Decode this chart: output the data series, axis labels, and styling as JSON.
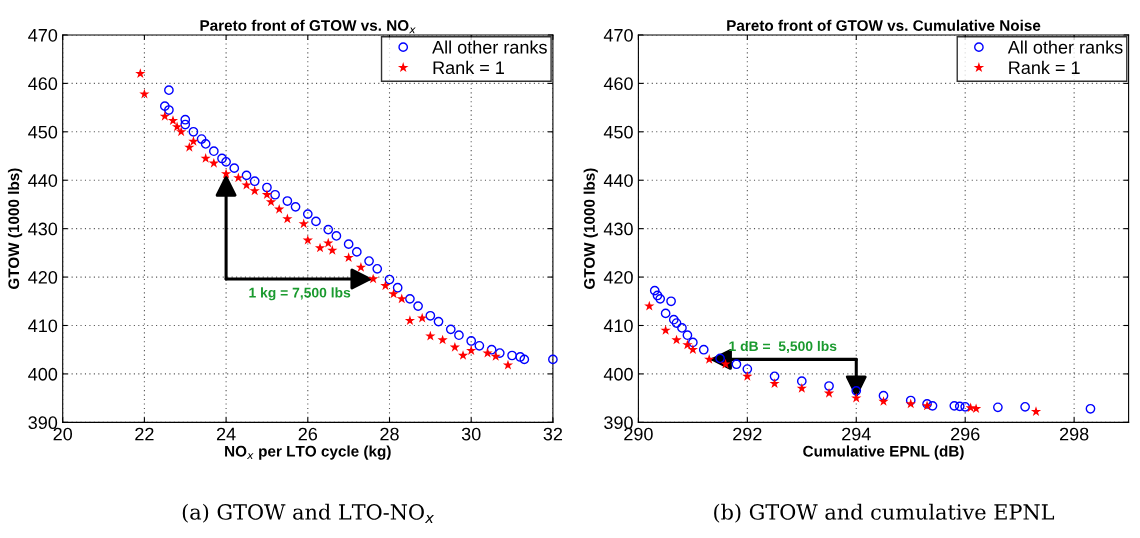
{
  "chart_data": [
    {
      "type": "scatter",
      "title": "Pareto front of GTOW vs. NO$_{x}$",
      "xlabel": "NO$_{x}$ per LTO cycle (kg)",
      "ylabel": "GTOW (1000 lbs)",
      "xlim": [
        20,
        32
      ],
      "xticks": [
        20,
        22,
        24,
        26,
        28,
        30,
        32
      ],
      "ylim": [
        390,
        470
      ],
      "yticks": [
        390,
        400,
        410,
        420,
        430,
        440,
        450,
        460,
        470
      ],
      "grid": true,
      "legend": "top right",
      "annotations": [
        "1 kg = 7,500 lbs",
        "(a) GTOW and LTO-NO$_{x}$"
      ],
      "series": [
        {
          "name": "All other ranks",
          "color": "#0000ff",
          "marker": "circle",
          "x": [
            22.6,
            22.5,
            22.6,
            23.0,
            23.0,
            23.2,
            23.4,
            23.5,
            23.7,
            23.9,
            24.0,
            24.2,
            24.5,
            24.7,
            25.0,
            25.2,
            25.5,
            25.7,
            26.0,
            26.2,
            26.5,
            26.7,
            27.0,
            27.2,
            27.5,
            27.7,
            28.0,
            28.2,
            28.5,
            28.7,
            29.0,
            29.2,
            29.5,
            29.7,
            30.0,
            30.2,
            30.5,
            30.7,
            31.0,
            31.2,
            31.3,
            32.0
          ],
          "values": [
            458.6,
            455.3,
            454.5,
            452.5,
            451.5,
            450.0,
            448.5,
            447.5,
            446.0,
            444.5,
            443.8,
            442.5,
            441.0,
            439.8,
            438.5,
            437.0,
            435.7,
            434.5,
            433.0,
            431.5,
            429.8,
            428.5,
            426.8,
            425.2,
            423.3,
            421.7,
            419.5,
            417.8,
            415.5,
            414.0,
            412.0,
            410.8,
            409.2,
            408.0,
            406.8,
            405.8,
            405.0,
            404.3,
            403.8,
            403.5,
            403.0,
            403.0
          ]
        },
        {
          "name": "Rank = 1",
          "color": "#ff0000",
          "marker": "star",
          "x": [
            21.9,
            22.0,
            22.5,
            22.7,
            22.8,
            22.9,
            23.1,
            23.2,
            23.5,
            23.7,
            24.0,
            24.3,
            24.5,
            24.7,
            25.0,
            25.1,
            25.3,
            25.5,
            25.9,
            26.0,
            26.3,
            26.5,
            26.6,
            27.0,
            27.3,
            27.6,
            27.9,
            28.1,
            28.3,
            28.5,
            28.8,
            29.0,
            29.3,
            29.6,
            29.8,
            30.0,
            30.4,
            30.6,
            30.9
          ],
          "values": [
            462.0,
            457.8,
            453.2,
            452.3,
            451.0,
            450.0,
            446.8,
            448.0,
            444.5,
            443.5,
            441.3,
            440.5,
            439.0,
            437.8,
            437.0,
            435.5,
            434.0,
            432.0,
            431.0,
            427.6,
            426.0,
            427.0,
            425.5,
            424.0,
            422.0,
            419.6,
            418.2,
            416.5,
            415.5,
            411.0,
            411.5,
            407.8,
            407.0,
            405.5,
            403.8,
            404.8,
            404.3,
            403.6,
            401.8
          ]
        }
      ]
    },
    {
      "type": "scatter",
      "title": "Pareto front of GTOW vs. Cumulative Noise",
      "xlabel": "Cumulative EPNL (dB)",
      "ylabel": "GTOW (1000 lbs)",
      "xlim": [
        290,
        299
      ],
      "xticks": [
        290,
        292,
        294,
        296,
        298
      ],
      "ylim": [
        390,
        470
      ],
      "yticks": [
        390,
        400,
        410,
        420,
        430,
        440,
        450,
        460,
        470
      ],
      "grid": true,
      "legend": "top right",
      "annotations": [
        "1 dB =  5,500 lbs",
        "(b) GTOW and cumulative EPNL"
      ],
      "series": [
        {
          "name": "All other ranks",
          "color": "#0000ff",
          "marker": "circle",
          "x": [
            290.3,
            290.35,
            290.4,
            290.6,
            290.5,
            290.65,
            290.7,
            290.8,
            290.9,
            291.0,
            291.2,
            291.5,
            291.8,
            292.0,
            292.5,
            293.0,
            293.5,
            294.0,
            294.5,
            295.0,
            295.3,
            295.4,
            295.8,
            295.9,
            296.0,
            296.6,
            297.1,
            298.3
          ],
          "values": [
            417.2,
            416.2,
            415.5,
            415.0,
            412.5,
            411.2,
            410.5,
            409.5,
            408.0,
            406.5,
            405.0,
            403.2,
            402.0,
            401.0,
            399.5,
            398.5,
            397.5,
            396.5,
            395.5,
            394.5,
            393.8,
            393.4,
            393.4,
            393.3,
            393.2,
            393.1,
            393.2,
            392.8
          ]
        },
        {
          "name": "Rank = 1",
          "color": "#ff0000",
          "marker": "star",
          "x": [
            290.2,
            290.5,
            290.7,
            290.9,
            291.0,
            291.3,
            291.6,
            292.0,
            292.5,
            293.0,
            293.5,
            294.0,
            294.5,
            295.0,
            295.3,
            296.1,
            296.2,
            297.3
          ],
          "values": [
            414.0,
            409.0,
            407.0,
            406.0,
            405.0,
            403.0,
            402.0,
            399.5,
            398.0,
            397.0,
            396.0,
            395.0,
            394.3,
            393.8,
            393.4,
            393.0,
            392.8,
            392.2
          ]
        }
      ]
    }
  ]
}
